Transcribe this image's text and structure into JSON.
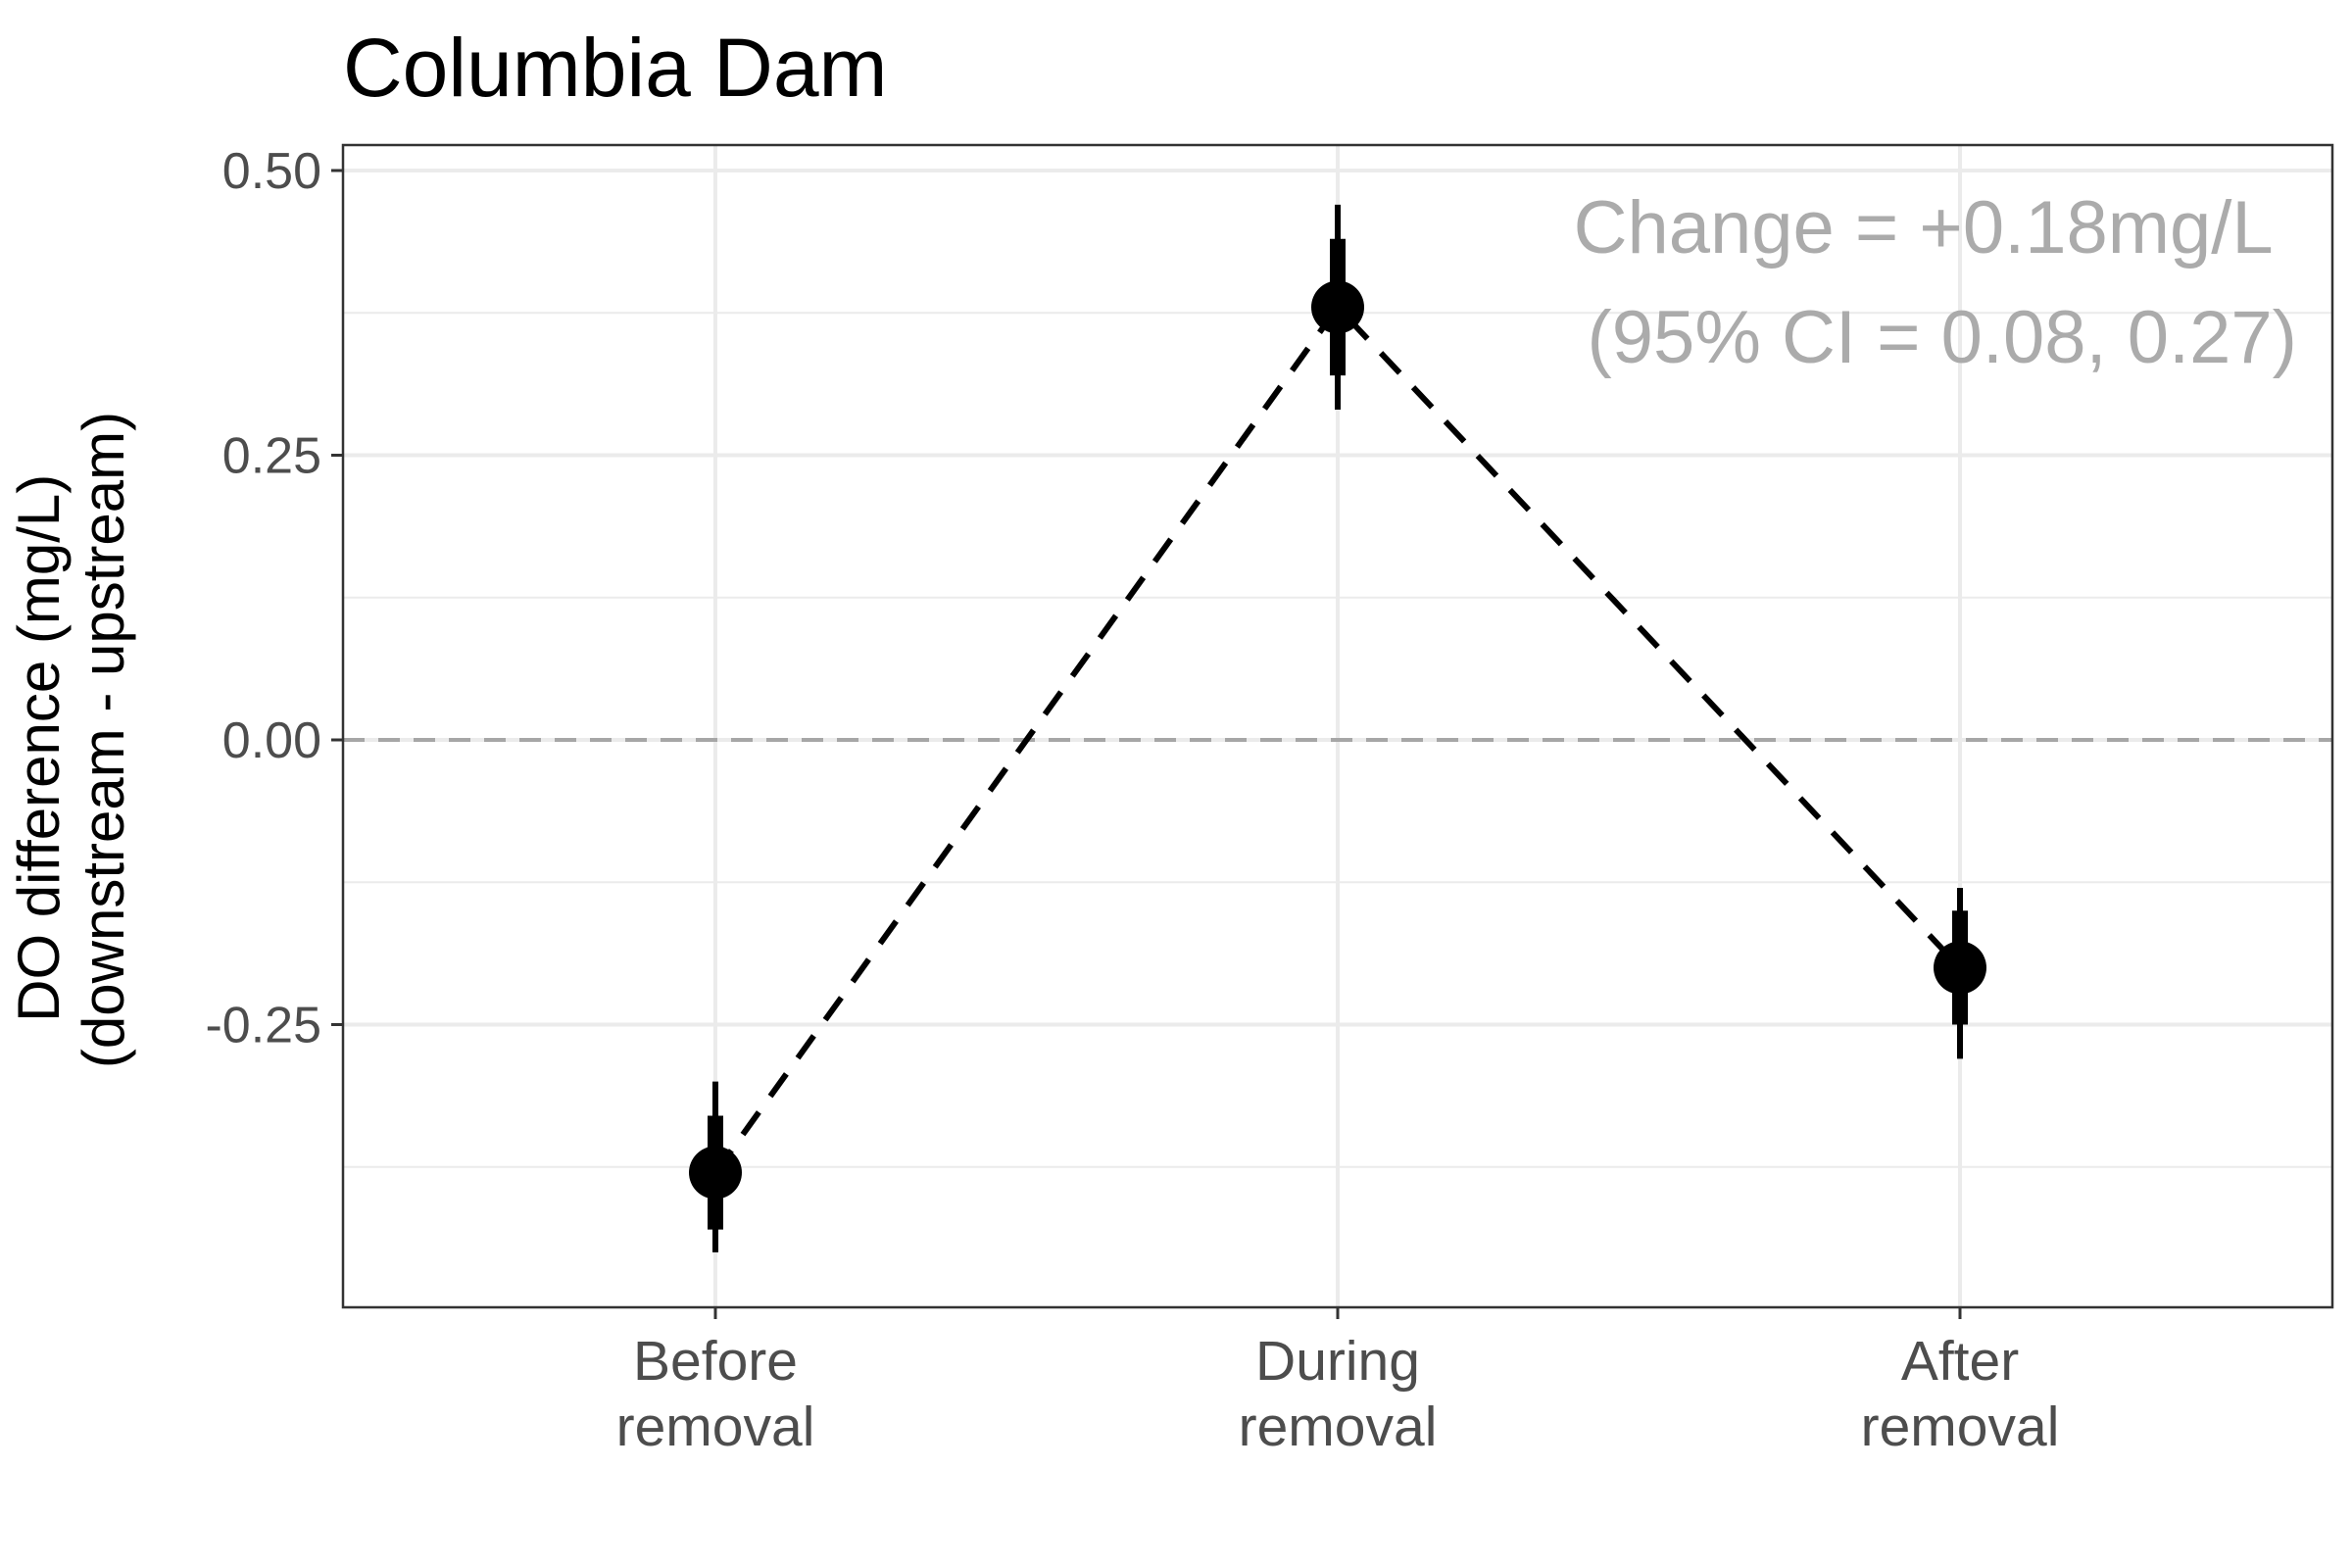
{
  "chart_data": {
    "type": "scatter",
    "title": "Columbia Dam",
    "ylabel_lines": [
      "DO difference (mg/L)",
      "(downstream - upstream)"
    ],
    "xlabel": "",
    "categories": [
      [
        "Before",
        "removal"
      ],
      [
        "During",
        "removal"
      ],
      [
        "After",
        "removal"
      ]
    ],
    "series": [
      {
        "values": [
          -0.38,
          0.38,
          -0.2
        ],
        "ci_inner": [
          [
            -0.43,
            -0.33
          ],
          [
            0.32,
            0.44
          ],
          [
            -0.25,
            -0.15
          ]
        ],
        "ci_outer": [
          [
            -0.45,
            -0.3
          ],
          [
            0.29,
            0.47
          ],
          [
            -0.28,
            -0.13
          ]
        ]
      }
    ],
    "connecting_line": "dashed",
    "reference_line_y": 0,
    "ylim": [
      -0.5,
      0.52
    ],
    "yticks": [
      0.5,
      0.25,
      0,
      -0.25
    ],
    "ytick_labels": [
      "0.50",
      "0.25",
      "0.00",
      "-0.25"
    ],
    "grid": true,
    "annotation": [
      "Change = +0.18mg/L",
      "(95% CI = 0.08, 0.27)"
    ],
    "colors": {
      "points": "#000000",
      "grid": "#ebebeb",
      "reference": "#a6a6a6",
      "annotation": "#ababab",
      "tick_text": "#4d4d4d"
    }
  }
}
